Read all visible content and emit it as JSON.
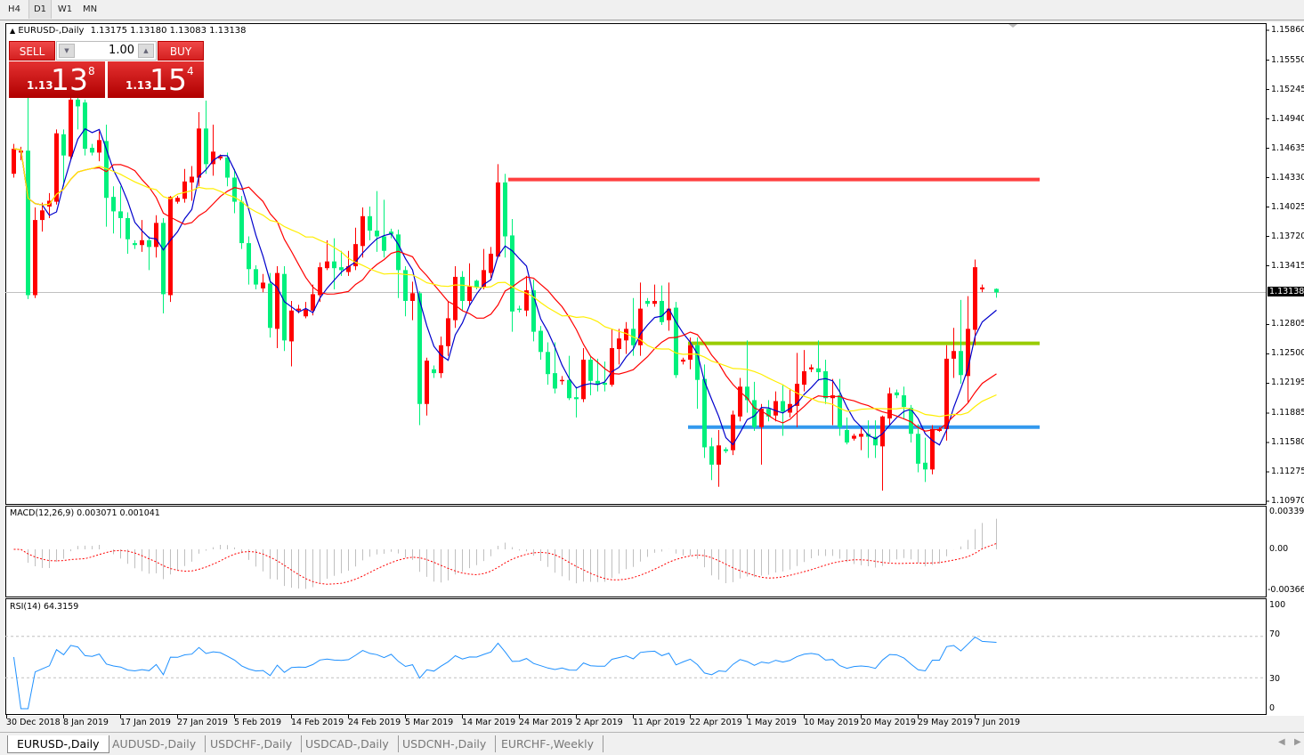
{
  "toolbar": {
    "timeframes": [
      "H4",
      "D1",
      "W1",
      "MN"
    ],
    "active": "D1"
  },
  "symbol": {
    "name": "EURUSD-,Daily",
    "ohlc": "1.13175 1.13180 1.13083 1.13138",
    "arrow_icon": "triangle-up-icon"
  },
  "trade_panel": {
    "sell_label": "SELL",
    "buy_label": "BUY",
    "lot": "1.00",
    "sell_price": {
      "prefix": "1.13",
      "big": "13",
      "sup": "8"
    },
    "buy_price": {
      "prefix": "1.13",
      "big": "15",
      "sup": "4"
    }
  },
  "price_axis": {
    "ticks": [
      "1.15860",
      "1.15550",
      "1.15245",
      "1.14940",
      "1.14635",
      "1.14330",
      "1.14025",
      "1.13720",
      "1.13415",
      "1.12805",
      "1.12500",
      "1.12195",
      "1.11885",
      "1.11580",
      "1.11275",
      "1.10970"
    ],
    "current": "1.13138"
  },
  "colors": {
    "bull": "#ff0000",
    "bear": "#00f07c",
    "ma_fast": "#0000cc",
    "ma_mid": "#ff0000",
    "ma_slow": "#ffee00",
    "resistance": "#ff4040",
    "mid_level": "#99cc00",
    "support": "#3399ee",
    "rsi": "#1e90ff",
    "macd_hist": "#c0c0c0",
    "macd_signal": "#ff0000"
  },
  "levels": {
    "resistance": 1.1431,
    "mid_level": 1.1261,
    "support": 1.1174
  },
  "chart": {
    "type": "candlestick",
    "ylim": [
      1.1097,
      1.1586
    ],
    "bars": [
      [
        1.1437,
        1.1468,
        1.1433,
        1.1463
      ],
      [
        1.1459,
        1.1465,
        1.1451,
        1.1461
      ],
      [
        1.1461,
        1.1527,
        1.1307,
        1.1311
      ],
      [
        1.1311,
        1.1402,
        1.1308,
        1.1389
      ],
      [
        1.1389,
        1.1407,
        1.1377,
        1.1399
      ],
      [
        1.1403,
        1.1417,
        1.1391,
        1.1409
      ],
      [
        1.1408,
        1.1483,
        1.1405,
        1.1479
      ],
      [
        1.1478,
        1.1483,
        1.1424,
        1.1456
      ],
      [
        1.1455,
        1.1518,
        1.1451,
        1.1514
      ],
      [
        1.1514,
        1.1518,
        1.1483,
        1.1507
      ],
      [
        1.1511,
        1.1514,
        1.1456,
        1.1463
      ],
      [
        1.1464,
        1.1468,
        1.1456,
        1.1459
      ],
      [
        1.1459,
        1.1481,
        1.145,
        1.1472
      ],
      [
        1.1471,
        1.1488,
        1.1382,
        1.1412
      ],
      [
        1.1413,
        1.1424,
        1.1375,
        1.1398
      ],
      [
        1.1398,
        1.1424,
        1.137,
        1.1391
      ],
      [
        1.1391,
        1.1397,
        1.1354,
        1.1369
      ],
      [
        1.1365,
        1.1368,
        1.1359,
        1.1363
      ],
      [
        1.1363,
        1.1389,
        1.1356,
        1.1368
      ],
      [
        1.1368,
        1.1372,
        1.1337,
        1.1361
      ],
      [
        1.1361,
        1.1394,
        1.135,
        1.1386
      ],
      [
        1.1386,
        1.1391,
        1.1292,
        1.1312
      ],
      [
        1.1311,
        1.1414,
        1.1304,
        1.1413
      ],
      [
        1.1408,
        1.1414,
        1.1406,
        1.1412
      ],
      [
        1.1411,
        1.1442,
        1.1407,
        1.1429
      ],
      [
        1.1428,
        1.1445,
        1.1409,
        1.1434
      ],
      [
        1.1433,
        1.1501,
        1.1424,
        1.1484
      ],
      [
        1.1484,
        1.1513,
        1.1437,
        1.1447
      ],
      [
        1.1447,
        1.1488,
        1.1435,
        1.146
      ],
      [
        1.1453,
        1.1457,
        1.1451,
        1.1455
      ],
      [
        1.1454,
        1.1459,
        1.1424,
        1.1433
      ],
      [
        1.1433,
        1.1442,
        1.1396,
        1.1408
      ],
      [
        1.1408,
        1.1414,
        1.1359,
        1.1365
      ],
      [
        1.1365,
        1.1372,
        1.1322,
        1.1338
      ],
      [
        1.1338,
        1.1342,
        1.1317,
        1.1322
      ],
      [
        1.1318,
        1.1333,
        1.1314,
        1.1324
      ],
      [
        1.1323,
        1.1334,
        1.1267,
        1.1277
      ],
      [
        1.1276,
        1.1341,
        1.1256,
        1.1334
      ],
      [
        1.1333,
        1.1341,
        1.1253,
        1.1264
      ],
      [
        1.1263,
        1.1305,
        1.1237,
        1.1295
      ],
      [
        1.1295,
        1.1301,
        1.1292,
        1.1297
      ],
      [
        1.1289,
        1.1304,
        1.1287,
        1.1296
      ],
      [
        1.1295,
        1.1322,
        1.129,
        1.1312
      ],
      [
        1.1311,
        1.1345,
        1.1304,
        1.134
      ],
      [
        1.1339,
        1.1368,
        1.1337,
        1.1346
      ],
      [
        1.1346,
        1.137,
        1.1317,
        1.1339
      ],
      [
        1.134,
        1.1357,
        1.1331,
        1.1337
      ],
      [
        1.1335,
        1.1357,
        1.1331,
        1.1341
      ],
      [
        1.1341,
        1.1381,
        1.1337,
        1.1364
      ],
      [
        1.1362,
        1.1402,
        1.135,
        1.1393
      ],
      [
        1.1393,
        1.1403,
        1.1368,
        1.1378
      ],
      [
        1.1378,
        1.1419,
        1.1356,
        1.1372
      ],
      [
        1.1372,
        1.141,
        1.135,
        1.1357
      ],
      [
        1.1377,
        1.138,
        1.137,
        1.1374
      ],
      [
        1.1374,
        1.1379,
        1.1308,
        1.1337
      ],
      [
        1.1337,
        1.1341,
        1.1289,
        1.1305
      ],
      [
        1.1305,
        1.1325,
        1.1285,
        1.1313
      ],
      [
        1.1313,
        1.1315,
        1.1176,
        1.1198
      ],
      [
        1.1198,
        1.1246,
        1.1186,
        1.1243
      ],
      [
        1.1234,
        1.1238,
        1.1225,
        1.123
      ],
      [
        1.123,
        1.1268,
        1.1225,
        1.1259
      ],
      [
        1.1258,
        1.1305,
        1.1248,
        1.1287
      ],
      [
        1.1285,
        1.1341,
        1.1277,
        1.133
      ],
      [
        1.133,
        1.1336,
        1.1295,
        1.1305
      ],
      [
        1.1305,
        1.1344,
        1.13,
        1.132
      ],
      [
        1.1326,
        1.1327,
        1.1317,
        1.1319
      ],
      [
        1.1319,
        1.1359,
        1.1317,
        1.1337
      ],
      [
        1.1334,
        1.1361,
        1.1329,
        1.1354
      ],
      [
        1.1351,
        1.1447,
        1.135,
        1.1428
      ],
      [
        1.1428,
        1.1437,
        1.135,
        1.1372
      ],
      [
        1.1373,
        1.139,
        1.1273,
        1.1294
      ],
      [
        1.1297,
        1.13,
        1.1293,
        1.1296
      ],
      [
        1.1295,
        1.1331,
        1.1289,
        1.1316
      ],
      [
        1.1316,
        1.1327,
        1.1263,
        1.1273
      ],
      [
        1.1274,
        1.1279,
        1.1244,
        1.1252
      ],
      [
        1.1252,
        1.1262,
        1.1218,
        1.1229
      ],
      [
        1.123,
        1.1262,
        1.1209,
        1.1214
      ],
      [
        1.1222,
        1.1227,
        1.1218,
        1.1223
      ],
      [
        1.1223,
        1.1248,
        1.1202,
        1.1204
      ],
      [
        1.1205,
        1.1216,
        1.1184,
        1.1203
      ],
      [
        1.1203,
        1.1256,
        1.12,
        1.1244
      ],
      [
        1.1244,
        1.1248,
        1.1207,
        1.1222
      ],
      [
        1.1222,
        1.1245,
        1.1211,
        1.1218
      ],
      [
        1.122,
        1.1242,
        1.1211,
        1.1218
      ],
      [
        1.1218,
        1.1276,
        1.1216,
        1.1256
      ],
      [
        1.1255,
        1.1276,
        1.1239,
        1.1266
      ],
      [
        1.1264,
        1.1283,
        1.125,
        1.1276
      ],
      [
        1.1276,
        1.1308,
        1.1248,
        1.1259
      ],
      [
        1.1259,
        1.1324,
        1.1248,
        1.1297
      ],
      [
        1.1305,
        1.1308,
        1.1299,
        1.1302
      ],
      [
        1.1302,
        1.1322,
        1.1299,
        1.1305
      ],
      [
        1.1305,
        1.1321,
        1.128,
        1.1283
      ],
      [
        1.1285,
        1.1324,
        1.1274,
        1.1297
      ],
      [
        1.1298,
        1.1304,
        1.1225,
        1.1228
      ],
      [
        1.1242,
        1.1246,
        1.1239,
        1.1244
      ],
      [
        1.1244,
        1.1267,
        1.1234,
        1.1259
      ],
      [
        1.1259,
        1.1267,
        1.1193,
        1.1223
      ],
      [
        1.1224,
        1.1239,
        1.1142,
        1.1153
      ],
      [
        1.1154,
        1.1163,
        1.1119,
        1.1135
      ],
      [
        1.1135,
        1.1171,
        1.1112,
        1.1155
      ],
      [
        1.1151,
        1.1153,
        1.1147,
        1.1149
      ],
      [
        1.115,
        1.1191,
        1.1145,
        1.1187
      ],
      [
        1.1185,
        1.1225,
        1.118,
        1.1216
      ],
      [
        1.1216,
        1.1264,
        1.1189,
        1.1202
      ],
      [
        1.1202,
        1.1221,
        1.117,
        1.1174
      ],
      [
        1.1174,
        1.1198,
        1.1135,
        1.1193
      ],
      [
        1.1193,
        1.1202,
        1.118,
        1.1185
      ],
      [
        1.1186,
        1.1211,
        1.118,
        1.1201
      ],
      [
        1.1201,
        1.1218,
        1.1165,
        1.119
      ],
      [
        1.1189,
        1.1214,
        1.1184,
        1.1198
      ],
      [
        1.1196,
        1.1251,
        1.1174,
        1.1219
      ],
      [
        1.1218,
        1.1254,
        1.1211,
        1.1232
      ],
      [
        1.1234,
        1.1239,
        1.1231,
        1.1236
      ],
      [
        1.1235,
        1.1264,
        1.1222,
        1.1231
      ],
      [
        1.1232,
        1.1244,
        1.1198,
        1.1204
      ],
      [
        1.1204,
        1.1224,
        1.1176,
        1.1207
      ],
      [
        1.1207,
        1.1224,
        1.1165,
        1.1174
      ],
      [
        1.1171,
        1.1184,
        1.1156,
        1.1158
      ],
      [
        1.1162,
        1.1167,
        1.116,
        1.1165
      ],
      [
        1.1164,
        1.1174,
        1.115,
        1.1167
      ],
      [
        1.1167,
        1.1181,
        1.1142,
        1.1164
      ],
      [
        1.1164,
        1.1181,
        1.1142,
        1.1155
      ],
      [
        1.1154,
        1.1186,
        1.1108,
        1.1185
      ],
      [
        1.1183,
        1.1215,
        1.1176,
        1.1209
      ],
      [
        1.121,
        1.1213,
        1.1204,
        1.1207
      ],
      [
        1.1207,
        1.1216,
        1.1182,
        1.1195
      ],
      [
        1.1194,
        1.1197,
        1.1158,
        1.1167
      ],
      [
        1.1167,
        1.1177,
        1.1127,
        1.1136
      ],
      [
        1.1137,
        1.1163,
        1.1117,
        1.113
      ],
      [
        1.113,
        1.1176,
        1.1125,
        1.1172
      ],
      [
        1.117,
        1.1174,
        1.1169,
        1.1172
      ],
      [
        1.1172,
        1.1259,
        1.116,
        1.1245
      ],
      [
        1.1245,
        1.1277,
        1.1225,
        1.1253
      ],
      [
        1.1253,
        1.1306,
        1.1219,
        1.1228
      ],
      [
        1.1227,
        1.131,
        1.12,
        1.1276
      ],
      [
        1.1275,
        1.1348,
        1.1259,
        1.134
      ],
      [
        1.1317,
        1.1322,
        1.1314,
        1.1319
      ],
      null,
      [
        1.13175,
        1.1318,
        1.13083,
        1.13138
      ]
    ],
    "dates": [
      "30 Dec 2018",
      "8 Jan 2019",
      "17 Jan 2019",
      "27 Jan 2019",
      "5 Feb 2019",
      "14 Feb 2019",
      "24 Feb 2019",
      "5 Mar 2019",
      "14 Mar 2019",
      "24 Mar 2019",
      "2 Apr 2019",
      "11 Apr 2019",
      "22 Apr 2019",
      "1 May 2019",
      "10 May 2019",
      "20 May 2019",
      "29 May 2019",
      "7 Jun 2019"
    ]
  },
  "macd": {
    "label": "MACD(12,26,9) 0.003071 0.001041",
    "axis": [
      "0.003392",
      "0.00",
      "-0.003664"
    ],
    "range": [
      -0.003664,
      0.003392
    ]
  },
  "rsi": {
    "label": "RSI(14) 64.3159",
    "axis": [
      "100",
      "70",
      "30",
      "0"
    ],
    "levels": [
      70,
      30
    ]
  },
  "bottom_tabs": [
    "EURUSD-,Daily",
    "AUDUSD-,Daily",
    "USDCHF-,Daily",
    "USDCAD-,Daily",
    "USDCNH-,Daily",
    "EURCHF-,Weekly"
  ],
  "active_tab": "EURUSD-,Daily"
}
